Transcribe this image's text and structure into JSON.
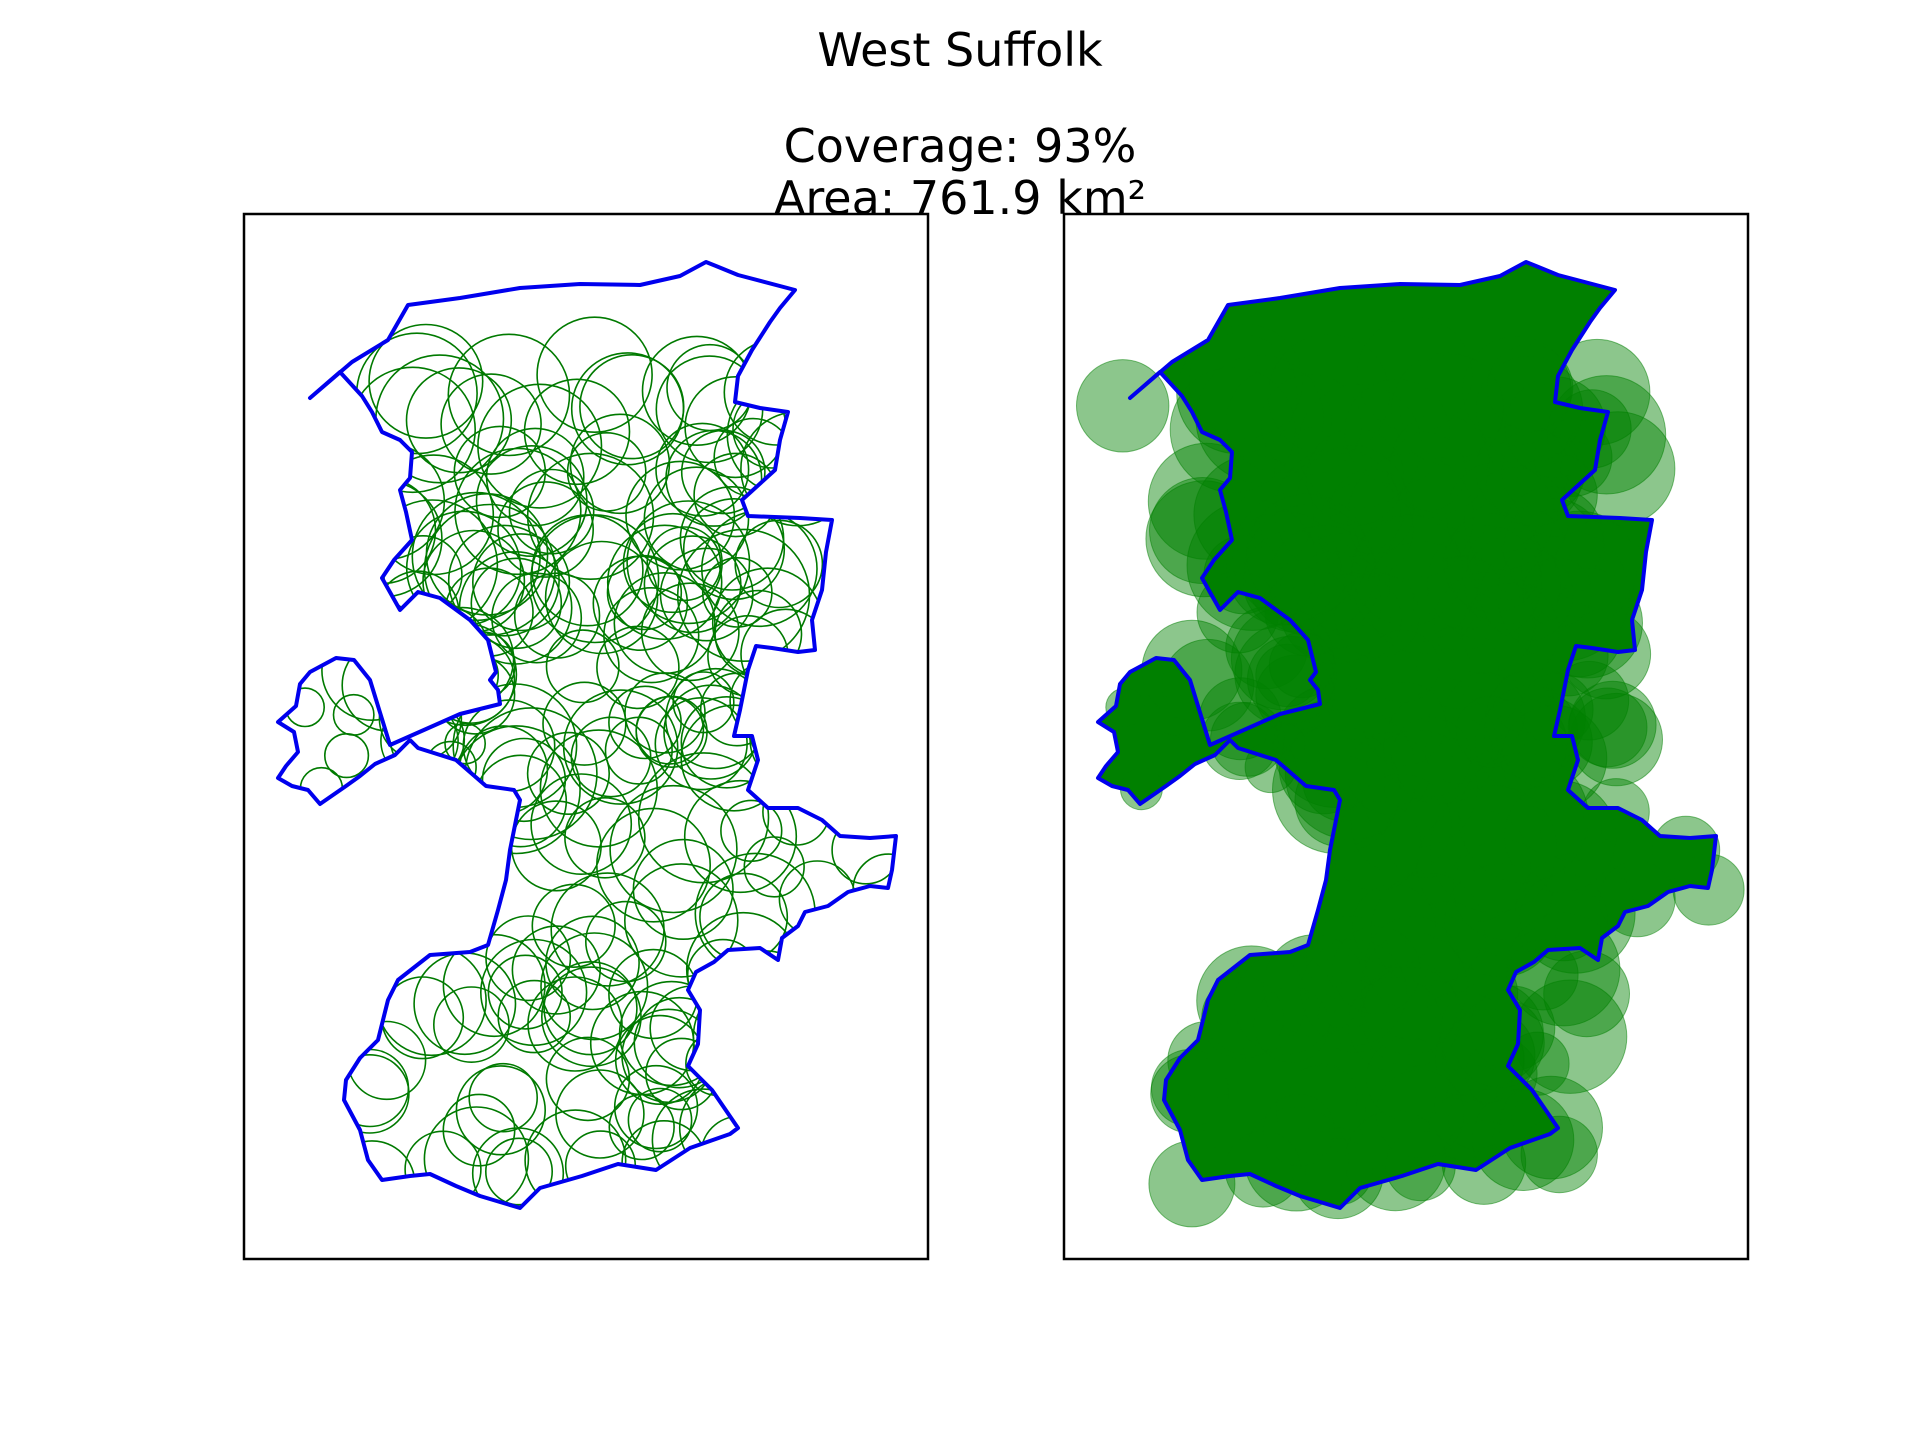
{
  "figure": {
    "title": "West Suffolk",
    "coverage_text": "Coverage: 93%",
    "area_text": "Area: 761.9 km²"
  },
  "colors": {
    "boundary": "#0000ee",
    "circle": "#007a00",
    "fill": "#008000",
    "frame": "#000000",
    "background": "#ffffff"
  },
  "panels": [
    {
      "name": "outline-panel",
      "style": "outline",
      "circle_fill_opacity": 0
    },
    {
      "name": "filled-panel",
      "style": "filled",
      "circle_fill_opacity": 0.45
    }
  ]
}
